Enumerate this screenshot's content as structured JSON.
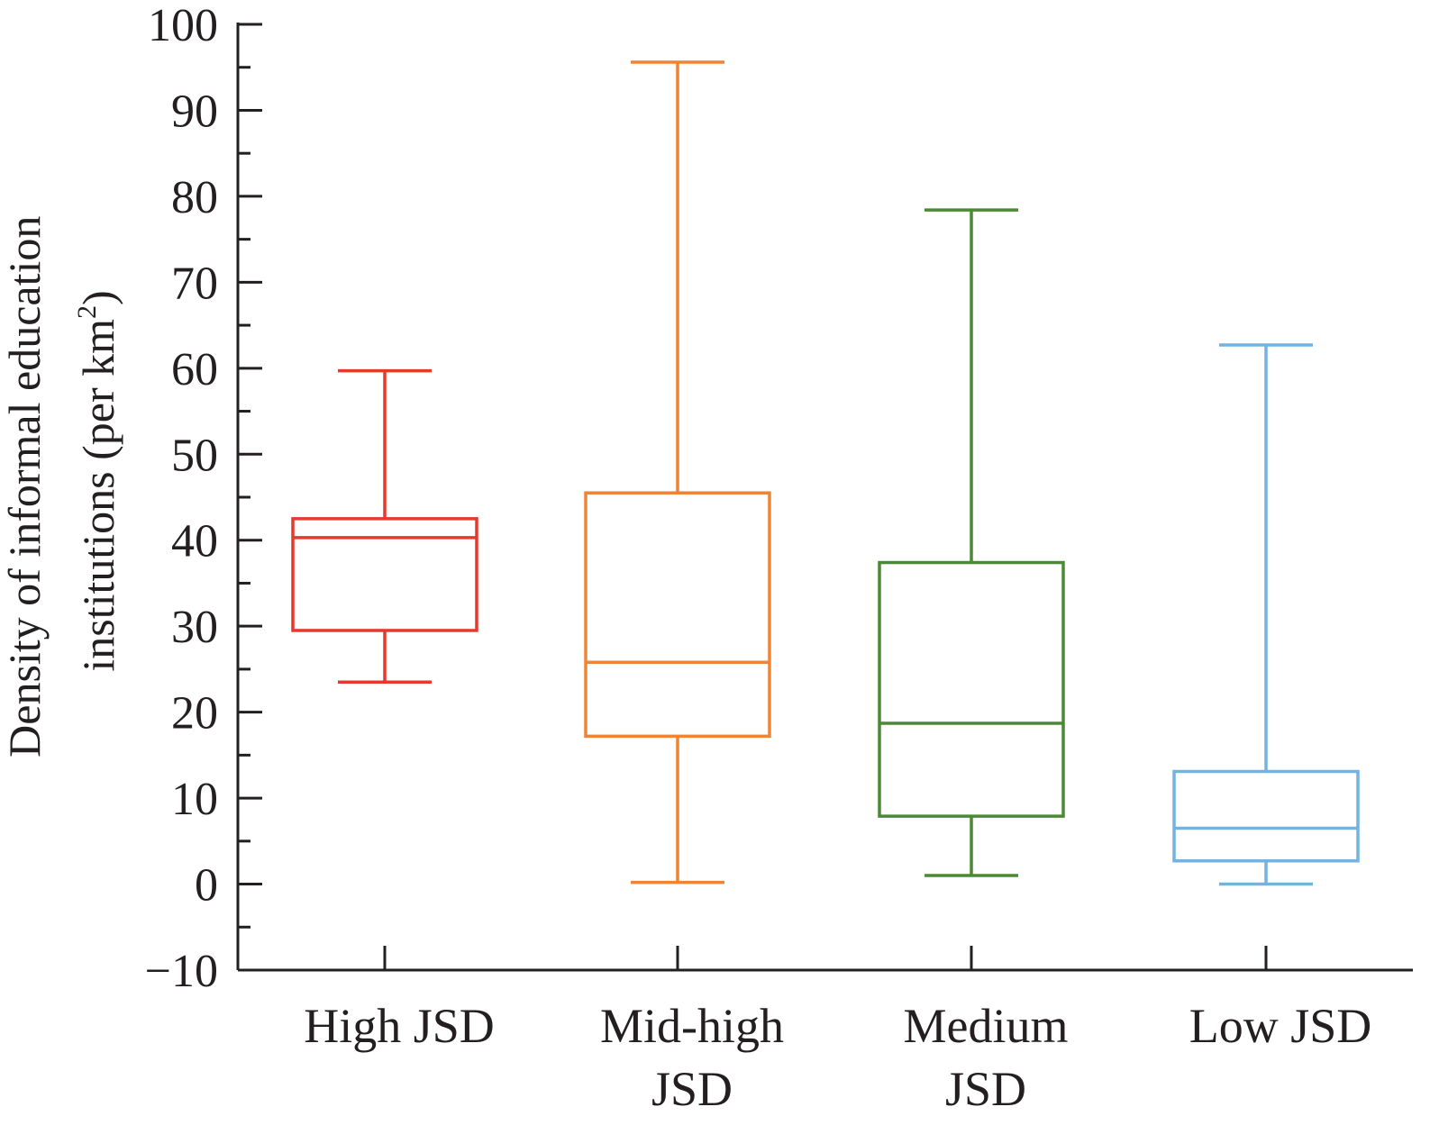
{
  "chart_data": {
    "type": "box",
    "title": "",
    "xlabel": "",
    "ylabel_lines": [
      "Density of informal education",
      "institutions (per km",
      "2",
      ")"
    ],
    "ylim": [
      -10,
      100
    ],
    "yticks": [
      100,
      90,
      80,
      70,
      60,
      50,
      40,
      30,
      20,
      10,
      0,
      -10
    ],
    "ytick_labels": [
      "100",
      "90",
      "80",
      "70",
      "60",
      "50",
      "40",
      "30",
      "20",
      "10",
      "0",
      "−10"
    ],
    "grid": false,
    "categories": [
      {
        "lines": [
          "High JSD"
        ]
      },
      {
        "lines": [
          "Mid-high",
          "JSD"
        ]
      },
      {
        "lines": [
          "Medium",
          "JSD"
        ]
      },
      {
        "lines": [
          "Low JSD"
        ]
      }
    ],
    "boxes": [
      {
        "whisker_low": 23.5,
        "q1": 29.5,
        "median": 40.3,
        "q3": 42.5,
        "whisker_high": 59.7,
        "color": "#e5392e"
      },
      {
        "whisker_low": 0.2,
        "q1": 17.2,
        "median": 25.8,
        "q3": 45.5,
        "whisker_high": 95.6,
        "color": "#ef8336"
      },
      {
        "whisker_low": 1.0,
        "q1": 7.9,
        "median": 18.7,
        "q3": 37.4,
        "whisker_high": 78.4,
        "color": "#4b8a34"
      },
      {
        "whisker_low": 0.0,
        "q1": 2.7,
        "median": 6.5,
        "q3": 13.1,
        "whisker_high": 62.7,
        "color": "#72b3df"
      }
    ]
  }
}
